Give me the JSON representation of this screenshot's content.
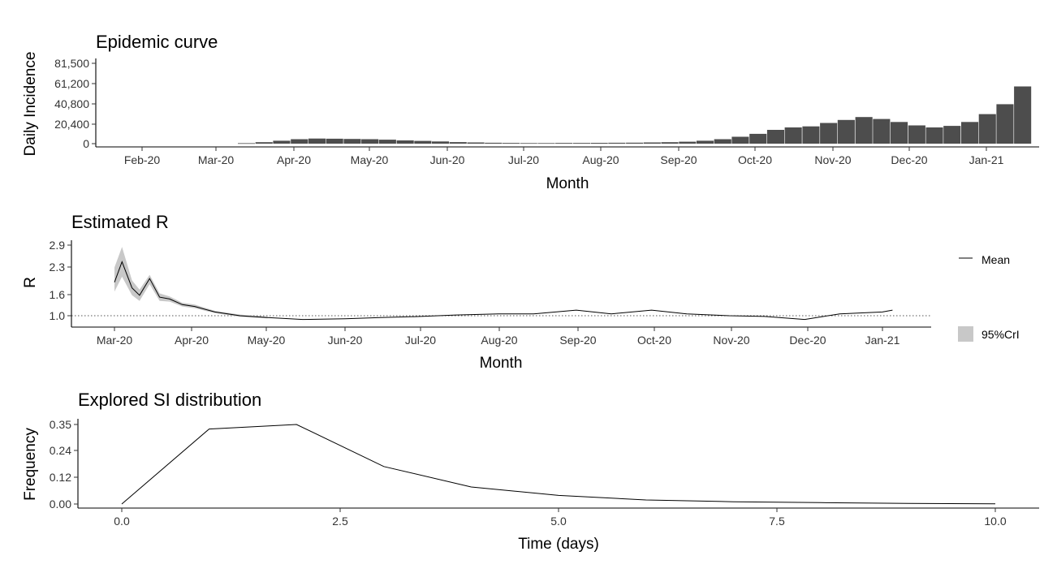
{
  "chart_data": [
    {
      "type": "bar",
      "title": "Epidemic curve",
      "xlabel": "Month",
      "ylabel": "Daily Incidence",
      "x_tick_labels": [
        "Feb-20",
        "Mar-20",
        "Apr-20",
        "May-20",
        "Jun-20",
        "Jul-20",
        "Aug-20",
        "Sep-20",
        "Oct-20",
        "Nov-20",
        "Dec-20",
        "Jan-21"
      ],
      "y_tick_labels": [
        "0",
        "20,400",
        "40,800",
        "61,200",
        "81,500"
      ],
      "ylim": [
        0,
        81500
      ],
      "bar_color": "#4d4d4d",
      "weekly_incidence": [
        {
          "week_start": "2020-03-10",
          "value": 500
        },
        {
          "week_start": "2020-03-17",
          "value": 1500
        },
        {
          "week_start": "2020-03-24",
          "value": 3000
        },
        {
          "week_start": "2020-03-31",
          "value": 4500
        },
        {
          "week_start": "2020-04-07",
          "value": 5200
        },
        {
          "week_start": "2020-04-14",
          "value": 5000
        },
        {
          "week_start": "2020-04-21",
          "value": 4800
        },
        {
          "week_start": "2020-04-28",
          "value": 4500
        },
        {
          "week_start": "2020-05-05",
          "value": 4000
        },
        {
          "week_start": "2020-05-12",
          "value": 3300
        },
        {
          "week_start": "2020-05-19",
          "value": 2800
        },
        {
          "week_start": "2020-05-26",
          "value": 2200
        },
        {
          "week_start": "2020-06-02",
          "value": 1600
        },
        {
          "week_start": "2020-06-09",
          "value": 1200
        },
        {
          "week_start": "2020-06-16",
          "value": 900
        },
        {
          "week_start": "2020-06-23",
          "value": 700
        },
        {
          "week_start": "2020-06-30",
          "value": 600
        },
        {
          "week_start": "2020-07-07",
          "value": 600
        },
        {
          "week_start": "2020-07-14",
          "value": 700
        },
        {
          "week_start": "2020-07-21",
          "value": 700
        },
        {
          "week_start": "2020-07-28",
          "value": 800
        },
        {
          "week_start": "2020-08-04",
          "value": 900
        },
        {
          "week_start": "2020-08-11",
          "value": 1000
        },
        {
          "week_start": "2020-08-18",
          "value": 1200
        },
        {
          "week_start": "2020-08-25",
          "value": 1500
        },
        {
          "week_start": "2020-09-01",
          "value": 2000
        },
        {
          "week_start": "2020-09-08",
          "value": 3000
        },
        {
          "week_start": "2020-09-15",
          "value": 4500
        },
        {
          "week_start": "2020-09-22",
          "value": 7000
        },
        {
          "week_start": "2020-09-29",
          "value": 10000
        },
        {
          "week_start": "2020-10-06",
          "value": 14000
        },
        {
          "week_start": "2020-10-13",
          "value": 16500
        },
        {
          "week_start": "2020-10-20",
          "value": 17500
        },
        {
          "week_start": "2020-10-27",
          "value": 21000
        },
        {
          "week_start": "2020-11-03",
          "value": 24000
        },
        {
          "week_start": "2020-11-10",
          "value": 27000
        },
        {
          "week_start": "2020-11-17",
          "value": 25000
        },
        {
          "week_start": "2020-11-24",
          "value": 22000
        },
        {
          "week_start": "2020-12-01",
          "value": 18500
        },
        {
          "week_start": "2020-12-08",
          "value": 16500
        },
        {
          "week_start": "2020-12-15",
          "value": 18000
        },
        {
          "week_start": "2020-12-22",
          "value": 22000
        },
        {
          "week_start": "2020-12-29",
          "value": 30000
        },
        {
          "week_start": "2021-01-05",
          "value": 40000
        },
        {
          "week_start": "2021-01-12",
          "value": 58000
        }
      ]
    },
    {
      "type": "line",
      "title": "Estimated R",
      "xlabel": "Month",
      "ylabel": "R",
      "x_tick_labels": [
        "Mar-20",
        "Apr-20",
        "May-20",
        "Jun-20",
        "Jul-20",
        "Aug-20",
        "Sep-20",
        "Oct-20",
        "Nov-20",
        "Dec-20",
        "Jan-21"
      ],
      "y_tick_labels": [
        "1.0",
        "1.6",
        "2.3",
        "2.9"
      ],
      "ylim": [
        0.7,
        3.0
      ],
      "reference_line": 1.0,
      "legend_position": "right",
      "series": [
        {
          "name": "Mean",
          "color": "#000000",
          "points": [
            {
              "date": "2020-03-01",
              "r": 1.9
            },
            {
              "date": "2020-03-04",
              "r": 2.45
            },
            {
              "date": "2020-03-08",
              "r": 1.75
            },
            {
              "date": "2020-03-11",
              "r": 1.55
            },
            {
              "date": "2020-03-15",
              "r": 2.0
            },
            {
              "date": "2020-03-19",
              "r": 1.5
            },
            {
              "date": "2020-03-23",
              "r": 1.45
            },
            {
              "date": "2020-03-28",
              "r": 1.3
            },
            {
              "date": "2020-04-02",
              "r": 1.25
            },
            {
              "date": "2020-04-10",
              "r": 1.1
            },
            {
              "date": "2020-04-20",
              "r": 1.0
            },
            {
              "date": "2020-05-01",
              "r": 0.95
            },
            {
              "date": "2020-05-15",
              "r": 0.9
            },
            {
              "date": "2020-06-01",
              "r": 0.92
            },
            {
              "date": "2020-06-15",
              "r": 0.95
            },
            {
              "date": "2020-07-01",
              "r": 0.98
            },
            {
              "date": "2020-07-15",
              "r": 1.02
            },
            {
              "date": "2020-08-01",
              "r": 1.05
            },
            {
              "date": "2020-08-15",
              "r": 1.05
            },
            {
              "date": "2020-09-01",
              "r": 1.15
            },
            {
              "date": "2020-09-15",
              "r": 1.05
            },
            {
              "date": "2020-10-01",
              "r": 1.15
            },
            {
              "date": "2020-10-15",
              "r": 1.05
            },
            {
              "date": "2020-11-01",
              "r": 1.0
            },
            {
              "date": "2020-11-15",
              "r": 0.98
            },
            {
              "date": "2020-12-01",
              "r": 0.9
            },
            {
              "date": "2020-12-15",
              "r": 1.05
            },
            {
              "date": "2021-01-01",
              "r": 1.1
            },
            {
              "date": "2021-01-05",
              "r": 1.15
            }
          ]
        },
        {
          "name": "95%CrI",
          "color": "#c8c8c8",
          "band": [
            {
              "date": "2020-03-01",
              "lo": 1.65,
              "hi": 2.3
            },
            {
              "date": "2020-03-04",
              "lo": 2.05,
              "hi": 2.85
            },
            {
              "date": "2020-03-08",
              "lo": 1.55,
              "hi": 1.95
            },
            {
              "date": "2020-03-11",
              "lo": 1.4,
              "hi": 1.7
            },
            {
              "date": "2020-03-15",
              "lo": 1.85,
              "hi": 2.1
            },
            {
              "date": "2020-03-19",
              "lo": 1.4,
              "hi": 1.6
            },
            {
              "date": "2020-03-23",
              "lo": 1.38,
              "hi": 1.52
            },
            {
              "date": "2020-03-28",
              "lo": 1.25,
              "hi": 1.35
            },
            {
              "date": "2020-04-02",
              "lo": 1.2,
              "hi": 1.3
            },
            {
              "date": "2020-04-10",
              "lo": 1.07,
              "hi": 1.13
            },
            {
              "date": "2020-04-20",
              "lo": 0.97,
              "hi": 1.03
            },
            {
              "date": "2020-05-01",
              "lo": 0.93,
              "hi": 0.97
            }
          ]
        }
      ]
    },
    {
      "type": "line",
      "title": "Explored SI distribution",
      "xlabel": "Time (days)",
      "ylabel": "Frequency",
      "x_tick_labels": [
        "0.0",
        "2.5",
        "5.0",
        "7.5",
        "10.0"
      ],
      "y_tick_labels": [
        "0.00",
        "0.12",
        "0.24",
        "0.35"
      ],
      "xlim": [
        0,
        10
      ],
      "ylim": [
        0,
        0.35
      ],
      "series": [
        {
          "x": [
            0,
            1,
            2,
            3,
            4,
            5,
            6,
            7,
            8,
            9,
            10
          ],
          "y": [
            0.0,
            0.33,
            0.35,
            0.165,
            0.075,
            0.038,
            0.018,
            0.01,
            0.006,
            0.003,
            0.001
          ]
        }
      ]
    }
  ],
  "legend": {
    "mean_label": "Mean",
    "cri_label": "95%CrI"
  }
}
